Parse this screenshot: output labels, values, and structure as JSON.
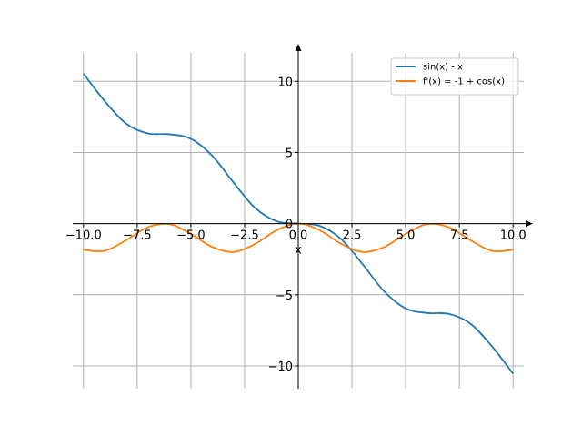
{
  "chart_data": {
    "type": "line",
    "xlabel": "x",
    "ylabel": "",
    "xlim": [
      -10.5,
      10.5
    ],
    "ylim": [
      -11.6,
      12.0
    ],
    "grid": true,
    "legend_position": "top-right",
    "x_ticks": [
      -10.0,
      -7.5,
      -5.0,
      -2.5,
      0.0,
      2.5,
      5.0,
      7.5,
      10.0
    ],
    "x_tick_labels": [
      "−10.0",
      "−7.5",
      "−5.0",
      "−2.5",
      "0.0",
      "2.5",
      "5.0",
      "7.5",
      "10.0"
    ],
    "y_ticks": [
      -10,
      -5,
      0,
      5,
      10
    ],
    "y_tick_labels": [
      "−10",
      "−5",
      "0",
      "5",
      "10"
    ],
    "x": [
      -10.0,
      -9.0,
      -8.0,
      -7.0,
      -6.0,
      -5.0,
      -4.0,
      -3.0,
      -2.0,
      -1.0,
      0.0,
      1.0,
      2.0,
      3.0,
      4.0,
      5.0,
      6.0,
      7.0,
      8.0,
      9.0,
      10.0
    ],
    "series": [
      {
        "name": "sin(x) - x",
        "color": "#1f77b4",
        "values": [
          10.54,
          8.59,
          7.01,
          6.34,
          6.28,
          5.96,
          4.76,
          2.86,
          1.09,
          0.16,
          0.0,
          -0.16,
          -1.09,
          -2.86,
          -4.76,
          -5.96,
          -6.28,
          -6.34,
          -7.01,
          -8.59,
          -10.54
        ]
      },
      {
        "name": "f'(x) = -1 + cos(x)",
        "color": "#ff7f0e",
        "values": [
          -1.84,
          -1.91,
          -1.15,
          -0.25,
          -0.04,
          -0.72,
          -1.65,
          -1.99,
          -1.42,
          -0.46,
          0.0,
          -0.46,
          -1.42,
          -1.99,
          -1.65,
          -0.72,
          -0.04,
          -0.25,
          -1.15,
          -1.91,
          -1.84
        ]
      }
    ]
  }
}
